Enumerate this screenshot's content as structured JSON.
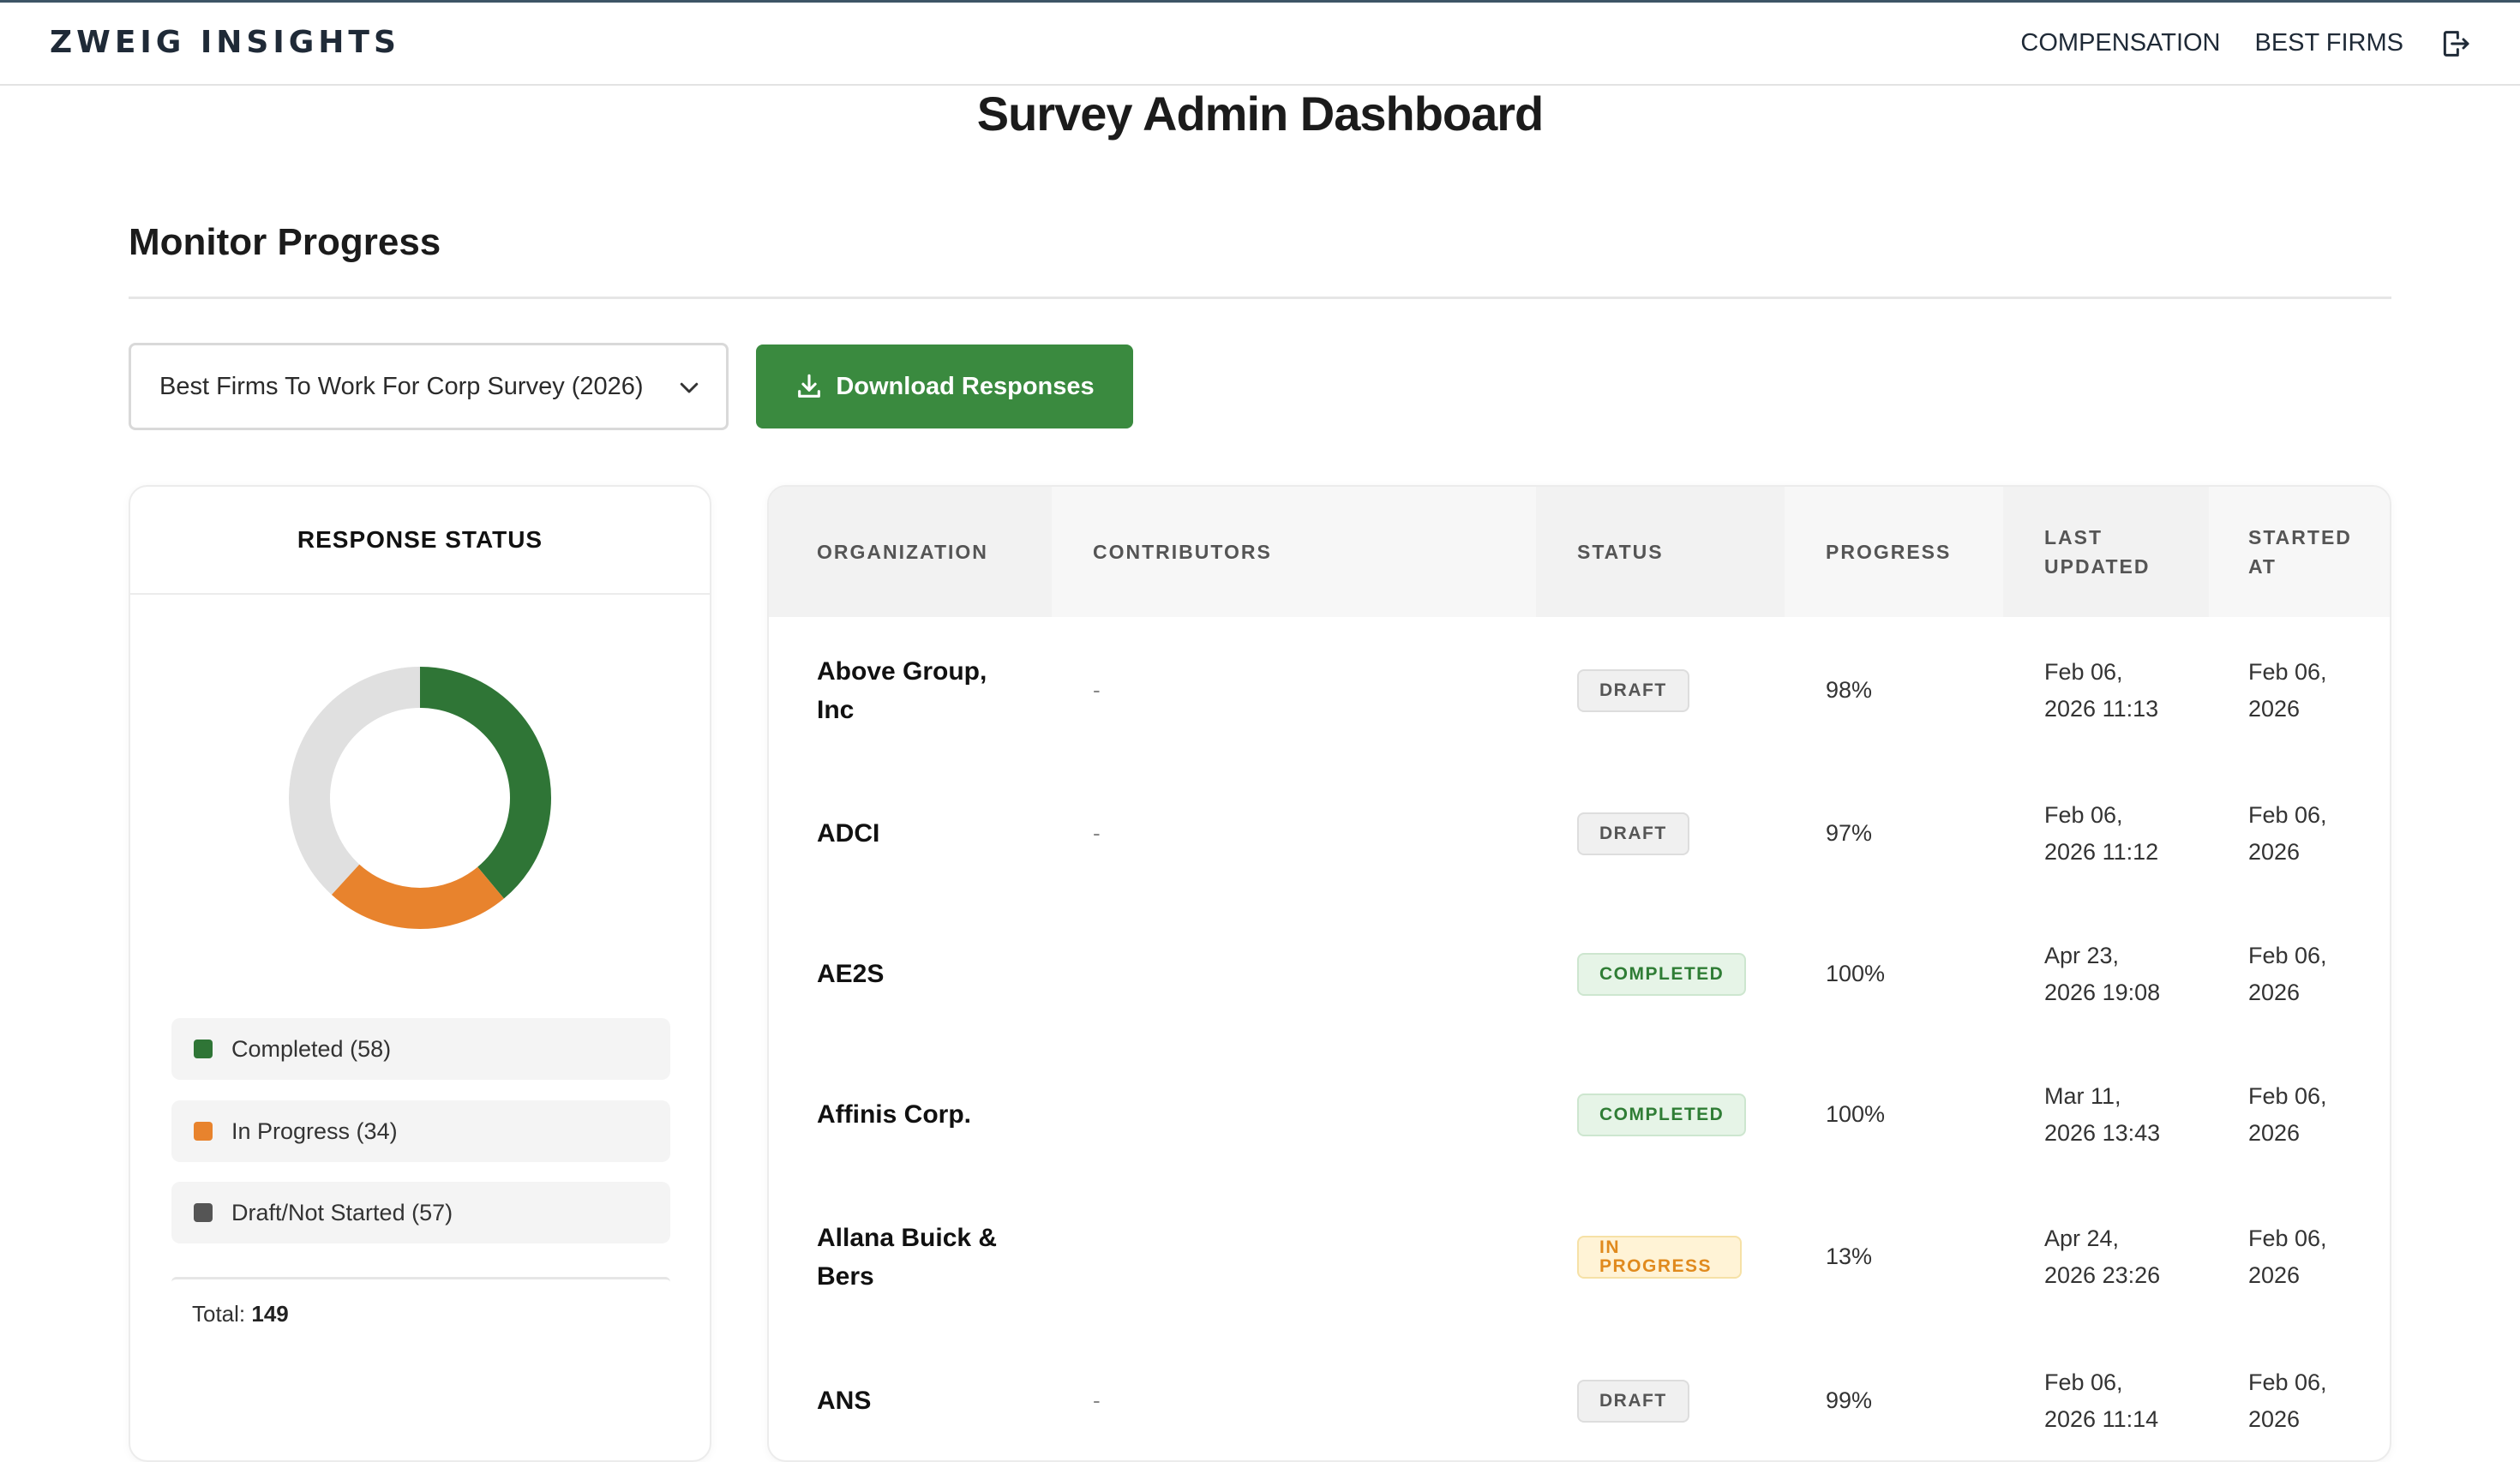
{
  "brand": "ZWEIG INSIGHTS",
  "nav": {
    "links": [
      "COMPENSATION",
      "BEST FIRMS"
    ],
    "logout_icon": "logout-icon"
  },
  "page_title": "Survey Admin Dashboard",
  "section_title": "Monitor Progress",
  "controls": {
    "survey_selected": "Best Firms To Work For Corp Survey (2026)",
    "download_label": "Download Responses"
  },
  "status_card": {
    "title": "RESPONSE STATUS",
    "segments": [
      {
        "label": "Completed (58)",
        "value": 58,
        "color": "#2f7536"
      },
      {
        "label": "In Progress (34)",
        "value": 34,
        "color": "#e8832d"
      },
      {
        "label": "Draft/Not Started (57)",
        "value": 57,
        "color": "#e0e0e0"
      }
    ],
    "legend_swatches": [
      "#2f7536",
      "#e8832d",
      "#555555"
    ],
    "total_label": "Total:",
    "total_value": "149"
  },
  "table": {
    "headers": [
      "ORGANIZATION",
      "CONTRIBUTORS",
      "STATUS",
      "PROGRESS",
      "LAST UPDATED",
      "STARTED AT"
    ],
    "rows": [
      {
        "org": "Above Group, Inc",
        "contributors": "-",
        "status": "DRAFT",
        "status_type": "draft",
        "progress": "98%",
        "last_updated": "Feb 06, 2026 11:13",
        "started_at": "Feb 06, 2026"
      },
      {
        "org": "ADCI",
        "contributors": "-",
        "status": "DRAFT",
        "status_type": "draft",
        "progress": "97%",
        "last_updated": "Feb 06, 2026 11:12",
        "started_at": "Feb 06, 2026"
      },
      {
        "org": "AE2S",
        "contributors": "",
        "status": "COMPLETED",
        "status_type": "completed",
        "progress": "100%",
        "last_updated": "Apr 23, 2026 19:08",
        "started_at": "Feb 06, 2026"
      },
      {
        "org": "Affinis Corp.",
        "contributors": "",
        "status": "COMPLETED",
        "status_type": "completed",
        "progress": "100%",
        "last_updated": "Mar 11, 2026 13:43",
        "started_at": "Feb 06, 2026"
      },
      {
        "org": "Allana Buick & Bers",
        "contributors": "",
        "status": "IN PROGRESS",
        "status_type": "inprogress",
        "progress": "13%",
        "last_updated": "Apr 24, 2026 23:26",
        "started_at": "Feb 06, 2026"
      },
      {
        "org": "ANS",
        "contributors": "-",
        "status": "DRAFT",
        "status_type": "draft",
        "progress": "99%",
        "last_updated": "Feb 06, 2026 11:14",
        "started_at": "Feb 06, 2026"
      }
    ]
  }
}
